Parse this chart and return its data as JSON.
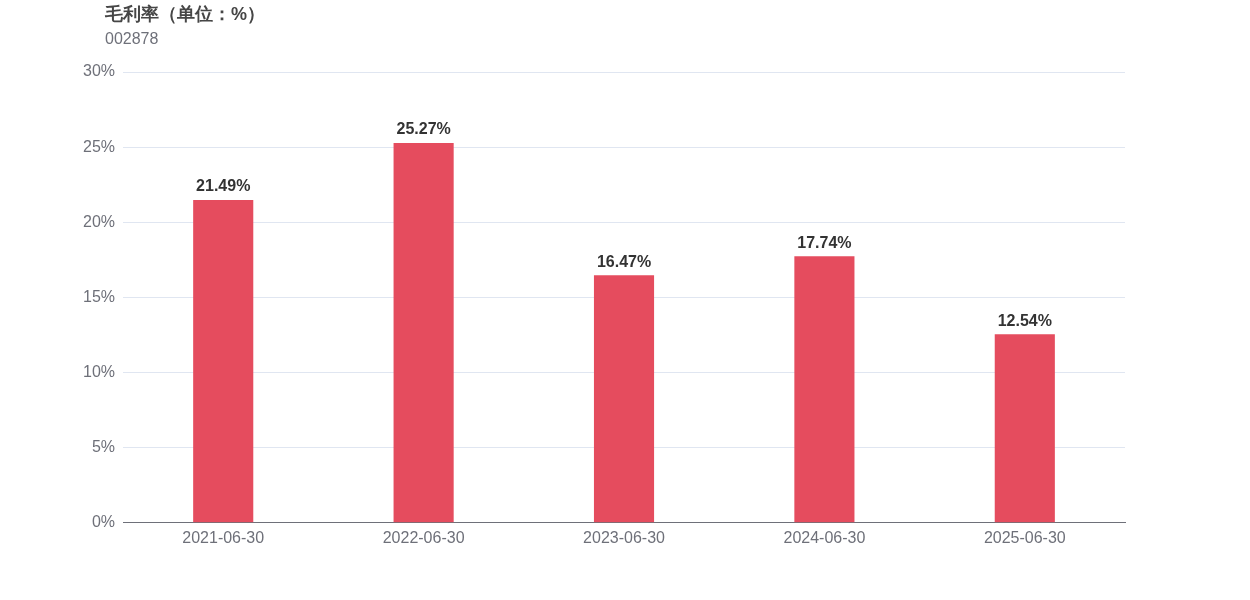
{
  "chart_data": {
    "type": "bar",
    "title": "毛利率（单位：%）",
    "subtitle": "002878",
    "categories": [
      "2021-06-30",
      "2022-06-30",
      "2023-06-30",
      "2024-06-30",
      "2025-06-30"
    ],
    "values": [
      21.49,
      25.27,
      16.47,
      17.74,
      12.54
    ],
    "value_labels": [
      "21.49%",
      "25.27%",
      "16.47%",
      "17.74%",
      "12.54%"
    ],
    "color": "#e54c5e",
    "ylim": [
      0,
      30
    ],
    "yticks": [
      {
        "value": 0,
        "label": "0%"
      },
      {
        "value": 5,
        "label": "5%"
      },
      {
        "value": 10,
        "label": "10%"
      },
      {
        "value": 15,
        "label": "15%"
      },
      {
        "value": 20,
        "label": "20%"
      },
      {
        "value": 25,
        "label": "25%"
      },
      {
        "value": 30,
        "label": "30%"
      }
    ],
    "grid": "y",
    "legend": false
  }
}
